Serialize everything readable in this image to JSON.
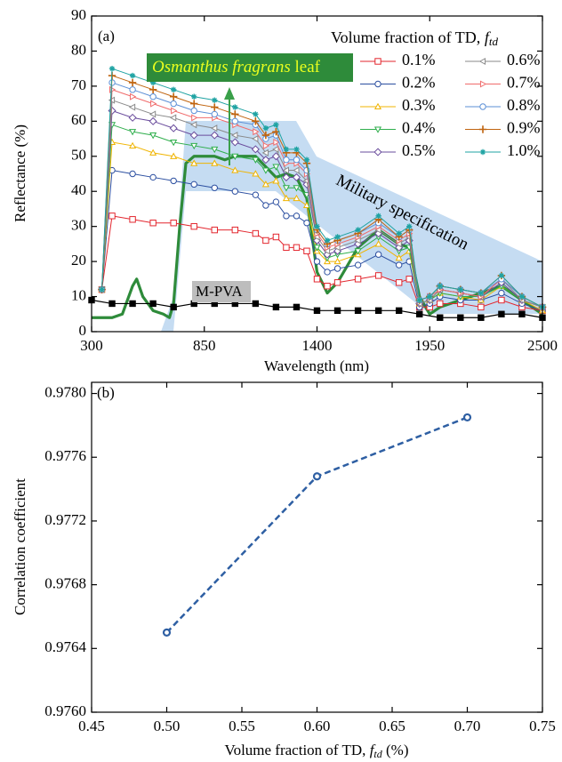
{
  "chart_data": [
    {
      "type": "line",
      "panel": "(a)",
      "xlabel": "Wavelength (nm)",
      "ylabel": "Reflectance (%)",
      "xlim": [
        300,
        2500
      ],
      "xticks": [
        300,
        850,
        1400,
        1950,
        2500
      ],
      "ylim": [
        0,
        90
      ],
      "yticks": [
        0,
        10,
        20,
        30,
        40,
        50,
        60,
        70,
        80,
        90
      ],
      "legend_title": "Volume fraction of TD, ",
      "legend_title_var": "f",
      "legend_title_sub": "td",
      "x": [
        350,
        400,
        500,
        600,
        700,
        800,
        900,
        1000,
        1100,
        1150,
        1200,
        1250,
        1300,
        1350,
        1400,
        1450,
        1500,
        1600,
        1700,
        1800,
        1850,
        1900,
        1950,
        2000,
        2100,
        2200,
        2300,
        2400,
        2500
      ],
      "series": [
        {
          "name": "0.1%",
          "color": "#e3262e",
          "marker": "square",
          "values": [
            12,
            33,
            32,
            31,
            31,
            30,
            29,
            29,
            28,
            26,
            27,
            24,
            24,
            23,
            15,
            13,
            14,
            15,
            16,
            14,
            15,
            7,
            7,
            8,
            8,
            7,
            9,
            7,
            6
          ]
        },
        {
          "name": "0.2%",
          "color": "#2c4fa0",
          "marker": "circle",
          "values": [
            12,
            46,
            45,
            44,
            43,
            42,
            41,
            40,
            39,
            36,
            37,
            33,
            33,
            31,
            20,
            17,
            18,
            19,
            22,
            19,
            20,
            7,
            8,
            10,
            9,
            9,
            11,
            8,
            6
          ]
        },
        {
          "name": "0.3%",
          "color": "#f0b400",
          "marker": "tri-up",
          "values": [
            12,
            54,
            53,
            51,
            50,
            48,
            48,
            46,
            45,
            42,
            43,
            38,
            38,
            36,
            23,
            20,
            20,
            22,
            25,
            21,
            23,
            8,
            9,
            11,
            10,
            9,
            13,
            9,
            6
          ]
        },
        {
          "name": "0.4%",
          "color": "#2fae4c",
          "marker": "tri-down",
          "values": [
            12,
            59,
            57,
            56,
            54,
            53,
            52,
            50,
            49,
            46,
            47,
            41,
            41,
            39,
            24,
            21,
            22,
            23,
            27,
            23,
            24,
            8,
            9,
            11,
            10,
            10,
            13,
            9,
            7
          ]
        },
        {
          "name": "0.5%",
          "color": "#6a4c9c",
          "marker": "diamond",
          "values": [
            12,
            63,
            61,
            60,
            58,
            56,
            56,
            54,
            52,
            49,
            50,
            44,
            44,
            42,
            26,
            22,
            23,
            25,
            28,
            24,
            26,
            8,
            9,
            12,
            11,
            10,
            14,
            9,
            7
          ]
        },
        {
          "name": "0.6%",
          "color": "#8a8a8a",
          "marker": "tri-left",
          "values": [
            12,
            66,
            64,
            62,
            61,
            59,
            58,
            56,
            55,
            51,
            52,
            46,
            46,
            43,
            27,
            23,
            24,
            26,
            29,
            25,
            27,
            8,
            9,
            12,
            11,
            10,
            15,
            9,
            7
          ]
        },
        {
          "name": "0.7%",
          "color": "#f06c6c",
          "marker": "tri-right",
          "values": [
            12,
            69,
            67,
            65,
            63,
            61,
            61,
            59,
            57,
            53,
            54,
            48,
            48,
            45,
            28,
            24,
            25,
            27,
            30,
            26,
            28,
            9,
            10,
            12,
            11,
            10,
            15,
            10,
            7
          ]
        },
        {
          "name": "0.8%",
          "color": "#5b8fd6",
          "marker": "circle",
          "values": [
            12,
            71,
            69,
            67,
            65,
            63,
            62,
            60,
            59,
            55,
            56,
            49,
            49,
            46,
            29,
            25,
            26,
            28,
            31,
            27,
            29,
            9,
            10,
            13,
            12,
            11,
            15,
            10,
            7
          ]
        },
        {
          "name": "0.9%",
          "color": "#c0640f",
          "marker": "plus",
          "values": [
            12,
            73,
            71,
            69,
            67,
            65,
            64,
            62,
            60,
            56,
            57,
            51,
            51,
            48,
            29,
            25,
            26,
            28,
            32,
            27,
            29,
            9,
            10,
            13,
            12,
            11,
            16,
            10,
            7
          ]
        },
        {
          "name": "1.0%",
          "color": "#1fa3a3",
          "marker": "star",
          "values": [
            12,
            75,
            73,
            71,
            69,
            67,
            66,
            64,
            62,
            58,
            59,
            52,
            52,
            49,
            30,
            26,
            27,
            29,
            33,
            28,
            30,
            9,
            10,
            13,
            12,
            11,
            16,
            10,
            7
          ]
        }
      ],
      "leaf": {
        "label_italic": "Osmanthus fragrans",
        "label": " leaf",
        "color": "#2e8b3a",
        "x": [
          300,
          400,
          450,
          500,
          520,
          550,
          600,
          650,
          680,
          700,
          730,
          760,
          800,
          900,
          950,
          1000,
          1050,
          1100,
          1150,
          1200,
          1250,
          1300,
          1350,
          1400,
          1450,
          1500,
          1600,
          1700,
          1750,
          1800,
          1850,
          1900,
          1950,
          2000,
          2100,
          2200,
          2300,
          2400,
          2500
        ],
        "values": [
          4,
          4,
          5,
          13,
          15,
          10,
          6,
          5,
          4,
          8,
          30,
          48,
          50,
          50,
          49,
          50,
          50,
          50,
          47,
          44,
          45,
          44,
          38,
          17,
          11,
          14,
          24,
          29,
          27,
          25,
          24,
          10,
          5,
          7,
          9,
          11,
          13,
          9,
          5
        ]
      },
      "m_pva": {
        "label": "M-PVA",
        "color": "#000000",
        "x": [
          300,
          400,
          500,
          600,
          700,
          800,
          900,
          1000,
          1100,
          1200,
          1300,
          1400,
          1500,
          1600,
          1700,
          1800,
          1900,
          2000,
          2100,
          2200,
          2300,
          2400,
          2500
        ],
        "values": [
          9,
          8,
          8,
          8,
          7,
          8,
          8,
          8,
          8,
          7,
          7,
          6,
          6,
          6,
          6,
          6,
          5,
          4,
          4,
          4,
          5,
          5,
          4
        ]
      },
      "annotation": "Military specification"
    },
    {
      "type": "line",
      "panel": "(b)",
      "ylabel": "Correlation coefficient",
      "xlabel": "Volume fraction of TD, ",
      "xlabel_var": "f",
      "xlabel_sub": "td",
      "xlabel_unit": " (%)",
      "xlim": [
        0.45,
        0.75
      ],
      "xticks": [
        0.45,
        {
          "value": 0.5,
          "label": "0.50"
        },
        0.55,
        {
          "value": 0.6,
          "label": "0.60"
        },
        0.65,
        {
          "value": 0.7,
          "label": "0.70"
        },
        0.75
      ],
      "ylim": [
        0.976,
        0.97807
      ],
      "yticks": [
        {
          "value": 0.976,
          "label": "0.9760"
        },
        {
          "value": 0.9764,
          "label": "0.9764"
        },
        {
          "value": 0.9768,
          "label": "0.9768"
        },
        {
          "value": 0.9772,
          "label": "0.9772"
        },
        {
          "value": 0.9776,
          "label": "0.9776"
        },
        {
          "value": 0.978,
          "label": "0.9780"
        }
      ],
      "x": [
        0.5,
        0.6,
        0.7
      ],
      "values": [
        0.9765,
        0.97748,
        0.97785
      ],
      "color": "#2e5fa3",
      "line_style": "dashed"
    }
  ]
}
